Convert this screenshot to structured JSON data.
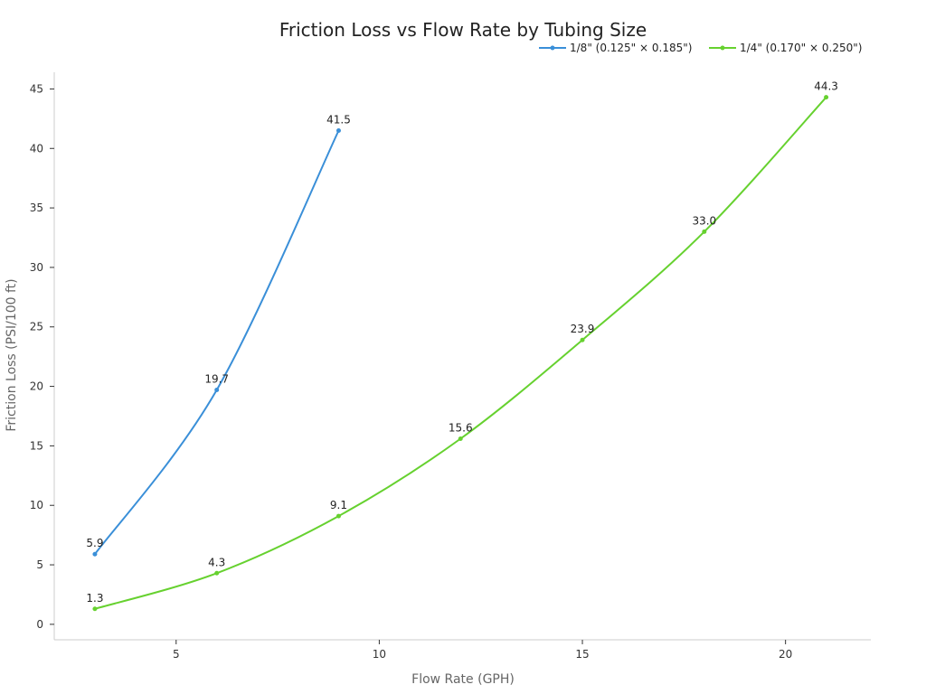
{
  "chart_data": {
    "type": "line",
    "title": "Friction Loss vs Flow Rate by Tubing Size",
    "xlabel": "Flow Rate (GPH)",
    "ylabel": "Friction Loss (PSI/100 ft)",
    "xlim": [
      2,
      22.1
    ],
    "ylim": [
      -1.3,
      46.4
    ],
    "xticks": [
      5,
      10,
      15,
      20
    ],
    "yticks": [
      0,
      5,
      10,
      15,
      20,
      25,
      30,
      35,
      40,
      45
    ],
    "grid": false,
    "legend_position": "top-right",
    "series": [
      {
        "name": "1/8\" (0.125\" × 0.185\")",
        "color": "#3a8fd8",
        "x": [
          3,
          6,
          9
        ],
        "y": [
          5.9,
          19.7,
          41.5
        ],
        "labels": [
          "5.9",
          "19.7",
          "41.5"
        ]
      },
      {
        "name": "1/4\" (0.170\" × 0.250\")",
        "color": "#66d12f",
        "x": [
          3,
          6,
          9,
          12,
          15,
          18,
          21
        ],
        "y": [
          1.3,
          4.3,
          9.1,
          15.6,
          23.9,
          33.0,
          44.3
        ],
        "labels": [
          "1.3",
          "4.3",
          "9.1",
          "15.6",
          "23.9",
          "33.0",
          "44.3"
        ]
      }
    ]
  }
}
